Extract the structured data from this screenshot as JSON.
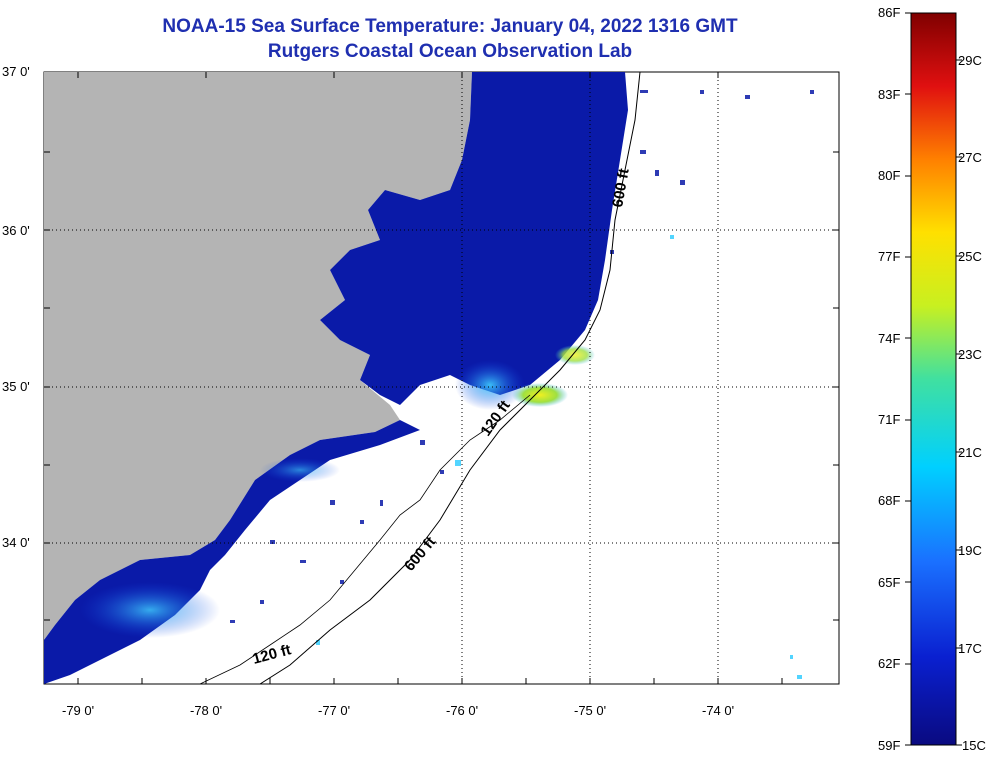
{
  "title": "NOAA-15 Sea Surface Temperature:  January 04, 2022 1316 GMT",
  "subtitle": "Rutgers Coastal Ocean Observation Lab",
  "axes": {
    "lat_labels": [
      "37 0'",
      "36 0'",
      "35 0'",
      "34 0'"
    ],
    "lon_labels": [
      "-79 0'",
      "-78 0'",
      "-77 0'",
      "-76 0'",
      "-75 0'",
      "-74 0'"
    ]
  },
  "contours": [
    {
      "text": "600 ft"
    },
    {
      "text": "120 ft"
    },
    {
      "text": "600 ft"
    },
    {
      "text": "120 ft"
    }
  ],
  "colorbar": {
    "f_labels": [
      "86F",
      "83F",
      "80F",
      "77F",
      "74F",
      "71F",
      "68F",
      "65F",
      "62F",
      "59F"
    ],
    "c_labels": [
      "29C",
      "27C",
      "25C",
      "23C",
      "21C",
      "19C",
      "17C",
      "15C"
    ]
  },
  "colors": {
    "land": "#b4b4b4",
    "ocean_cold": "#0a1aa8",
    "title": "#1f2fb0"
  }
}
